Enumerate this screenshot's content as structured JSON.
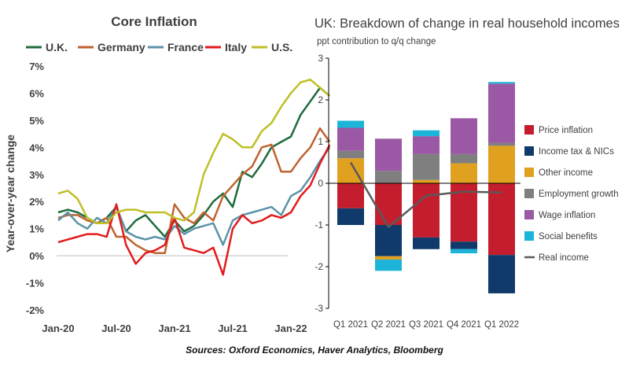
{
  "source": "Sources: Oxford Economics, Haver Analytics, Bloomberg",
  "chart_data": [
    {
      "type": "line",
      "title": "Core Inflation",
      "xlabel": "",
      "ylabel": "Year-over-year change",
      "ylim": [
        -2,
        7
      ],
      "yticks": [
        "-2%",
        "-1%",
        "0%",
        "1%",
        "2%",
        "3%",
        "4%",
        "5%",
        "6%",
        "7%"
      ],
      "xticks": [
        "Jan-20",
        "Jul-20",
        "Jan-21",
        "Jul-21",
        "Jan-22"
      ],
      "legend_position": "top",
      "x_months_from_jan2020": true,
      "series": [
        {
          "name": "U.K.",
          "color": "#1e6b3c",
          "values": [
            1.6,
            1.7,
            1.6,
            1.4,
            1.2,
            1.4,
            1.8,
            0.9,
            1.3,
            1.5,
            1.1,
            0.7,
            1.3,
            0.9,
            1.1,
            1.5,
            2.0,
            2.3,
            1.8,
            3.1,
            2.9,
            3.4,
            4.0,
            4.2,
            4.4,
            5.2,
            5.7,
            6.2,
            5.9
          ]
        },
        {
          "name": "Germany",
          "color": "#c0622e",
          "values": [
            1.4,
            1.5,
            1.5,
            1.3,
            1.2,
            1.4,
            0.7,
            0.7,
            0.4,
            0.2,
            0.1,
            0.1,
            1.9,
            1.4,
            1.2,
            1.6,
            1.3,
            2.2,
            2.6,
            3.0,
            3.3,
            4.0,
            4.1,
            3.1,
            3.1,
            3.6,
            4.0,
            4.7,
            4.2
          ]
        },
        {
          "name": "France",
          "color": "#5b93a8",
          "values": [
            1.3,
            1.6,
            1.2,
            1.0,
            1.4,
            1.2,
            1.8,
            0.9,
            0.7,
            0.6,
            0.7,
            0.6,
            1.1,
            0.8,
            1.0,
            1.1,
            1.2,
            0.4,
            1.3,
            1.5,
            1.6,
            1.7,
            1.8,
            1.5,
            2.2,
            2.4,
            2.9,
            3.5,
            4.0
          ]
        },
        {
          "name": "Italy",
          "color": "#e31a1c",
          "values": [
            0.5,
            0.6,
            0.7,
            0.8,
            0.8,
            0.7,
            1.9,
            0.4,
            -0.3,
            0.1,
            0.2,
            0.4,
            1.4,
            0.3,
            0.2,
            0.1,
            0.3,
            -0.7,
            1.0,
            1.5,
            1.2,
            1.3,
            1.5,
            1.4,
            1.6,
            2.2,
            2.6,
            3.4,
            4.1
          ]
        },
        {
          "name": "U.S.",
          "color": "#bfbf26",
          "values": [
            2.3,
            2.4,
            2.1,
            1.4,
            1.2,
            1.2,
            1.6,
            1.7,
            1.7,
            1.6,
            1.6,
            1.6,
            1.4,
            1.3,
            1.6,
            3.0,
            3.8,
            4.5,
            4.3,
            4.0,
            4.0,
            4.6,
            4.9,
            5.5,
            6.0,
            6.4,
            6.5,
            6.2,
            5.9
          ]
        }
      ]
    },
    {
      "type": "bar",
      "stacked": true,
      "title": "UK: Breakdown of change in real household incomes",
      "subtitle": "ppt contribution to q/q change",
      "xlabel": "",
      "ylabel": "",
      "ylim": [
        -3,
        3
      ],
      "yticks": [
        "-3",
        "-2",
        "-1",
        "0",
        "1",
        "2",
        "3"
      ],
      "categories": [
        "Q1 2021",
        "Q2 2021",
        "Q3 2021",
        "Q4 2021",
        "Q1 2022"
      ],
      "legend_position": "right",
      "series": [
        {
          "name": "Price inflation",
          "color": "#c41e2e",
          "values": [
            -0.6,
            -1.0,
            -1.3,
            -1.4,
            -1.72
          ]
        },
        {
          "name": "Income tax & NICs",
          "color": "#0f3a6b",
          "values": [
            -0.4,
            -0.75,
            -0.28,
            -0.18,
            -0.92
          ]
        },
        {
          "name": "Other income",
          "color": "#e0a020",
          "values": [
            0.6,
            -0.08,
            0.08,
            0.48,
            0.9
          ]
        },
        {
          "name": "Employment growth",
          "color": "#7f7f7f",
          "values": [
            0.18,
            0.3,
            0.62,
            0.22,
            0.07
          ]
        },
        {
          "name": "Wage inflation",
          "color": "#9b59a5",
          "values": [
            0.55,
            0.77,
            0.43,
            0.86,
            1.42
          ]
        },
        {
          "name": "Social benefits",
          "color": "#1cb4d8",
          "values": [
            0.17,
            -0.27,
            0.14,
            -0.1,
            0.04
          ]
        }
      ],
      "line_series": {
        "name": "Real income",
        "color": "#595959",
        "values": [
          0.5,
          -1.05,
          -0.3,
          -0.2,
          -0.22
        ]
      }
    }
  ]
}
